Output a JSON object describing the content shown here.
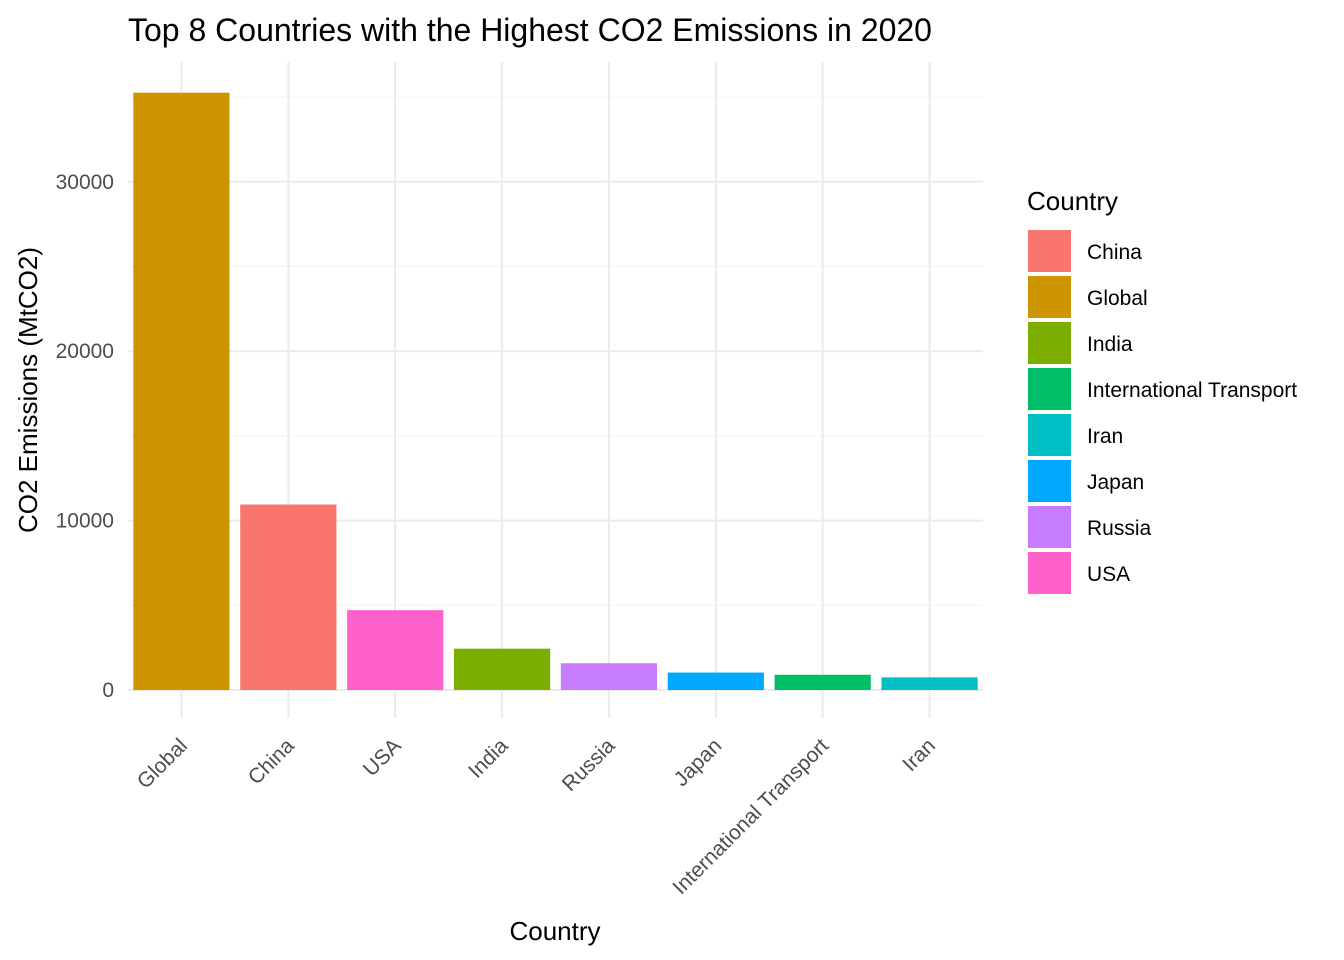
{
  "chart_data": {
    "type": "bar",
    "title": "Top 8 Countries with the Highest CO2 Emissions in 2020",
    "xlabel": "Country",
    "ylabel": "CO2 Emissions (MtCO2)",
    "categories": [
      "Global",
      "China",
      "USA",
      "India",
      "Russia",
      "Japan",
      "International Transport",
      "Iran"
    ],
    "values": [
      35260,
      10950,
      4715,
      2440,
      1580,
      1030,
      900,
      745
    ],
    "ylim": [
      0,
      37000
    ],
    "yticks": [
      0,
      10000,
      20000,
      30000
    ],
    "ytick_labels": [
      "0",
      "10000",
      "20000",
      "30000"
    ],
    "grid": true,
    "legend": {
      "title": "Country",
      "position": "right",
      "entries": [
        {
          "label": "China",
          "color": "#F8766D"
        },
        {
          "label": "Global",
          "color": "#CD9600"
        },
        {
          "label": "India",
          "color": "#7CAE00"
        },
        {
          "label": "International Transport",
          "color": "#00BE67"
        },
        {
          "label": "Iran",
          "color": "#00BFC4"
        },
        {
          "label": "Japan",
          "color": "#00A9FF"
        },
        {
          "label": "Russia",
          "color": "#C77CFF"
        },
        {
          "label": "USA",
          "color": "#FF61CC"
        }
      ]
    }
  }
}
